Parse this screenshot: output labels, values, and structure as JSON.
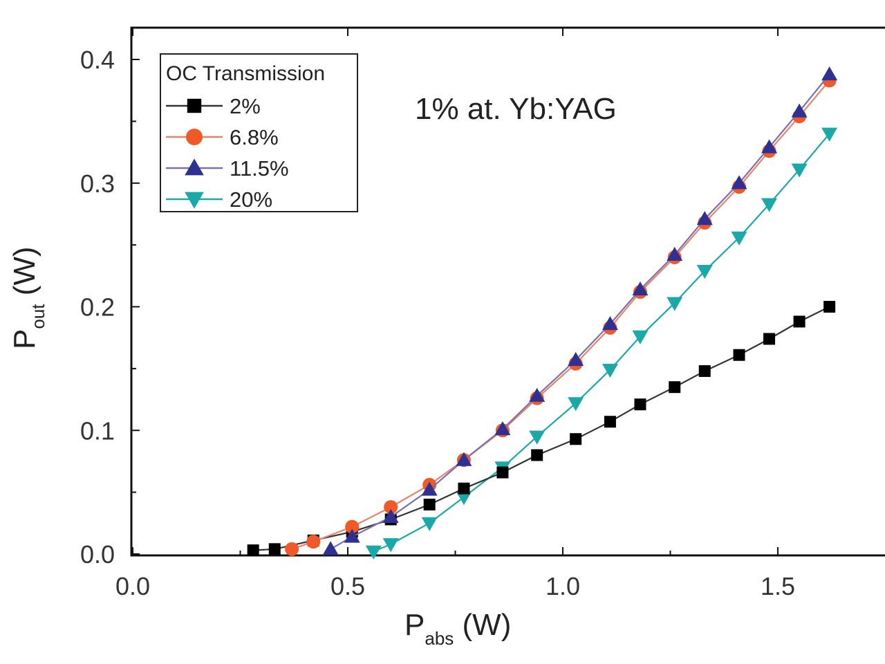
{
  "chart_data": {
    "type": "line",
    "title": "",
    "annotation": "1% at. Yb:YAG",
    "xlabel": {
      "main": "P",
      "sub": "abs",
      "unit": " (W)"
    },
    "ylabel": {
      "main": "P",
      "sub": "out",
      "unit": " (W)"
    },
    "xlim": [
      0.0,
      1.75
    ],
    "ylim": [
      0.0,
      0.42
    ],
    "xticks": [
      "0.0",
      "0.5",
      "1.0",
      "1.5"
    ],
    "xtick_values": [
      0.0,
      0.5,
      1.0,
      1.5
    ],
    "yticks": [
      "0.0",
      "0.1",
      "0.2",
      "0.3",
      "0.4"
    ],
    "ytick_values": [
      0.0,
      0.1,
      0.2,
      0.3,
      0.4
    ],
    "grid": false,
    "legend": {
      "title": "OC Transmission",
      "placement": "top-left"
    },
    "series": [
      {
        "name": "2%",
        "marker": "square",
        "color": "#000000",
        "line_color": "#333333",
        "x": [
          0.28,
          0.33,
          0.42,
          0.51,
          0.6,
          0.69,
          0.77,
          0.86,
          0.94,
          1.03,
          1.11,
          1.18,
          1.26,
          1.33,
          1.41,
          1.48,
          1.55,
          1.62
        ],
        "y": [
          0.003,
          0.004,
          0.011,
          0.018,
          0.028,
          0.04,
          0.053,
          0.066,
          0.08,
          0.093,
          0.107,
          0.121,
          0.135,
          0.148,
          0.161,
          0.174,
          0.188,
          0.2
        ]
      },
      {
        "name": "6.8%",
        "marker": "circle",
        "color": "#f05a28",
        "line_color": "#e8846a",
        "x": [
          0.37,
          0.42,
          0.51,
          0.6,
          0.69,
          0.77,
          0.86,
          0.94,
          1.03,
          1.11,
          1.18,
          1.26,
          1.33,
          1.41,
          1.48,
          1.55,
          1.62
        ],
        "y": [
          0.004,
          0.01,
          0.022,
          0.038,
          0.056,
          0.076,
          0.1,
          0.126,
          0.154,
          0.183,
          0.212,
          0.24,
          0.268,
          0.297,
          0.326,
          0.354,
          0.383
        ]
      },
      {
        "name": "11.5%",
        "marker": "triangle-up",
        "color": "#2e3192",
        "line_color": "#7a6fb0",
        "x": [
          0.46,
          0.51,
          0.6,
          0.69,
          0.77,
          0.86,
          0.94,
          1.03,
          1.11,
          1.18,
          1.26,
          1.33,
          1.41,
          1.48,
          1.55,
          1.62
        ],
        "y": [
          0.004,
          0.014,
          0.03,
          0.052,
          0.076,
          0.101,
          0.128,
          0.157,
          0.186,
          0.214,
          0.242,
          0.271,
          0.3,
          0.329,
          0.358,
          0.388
        ]
      },
      {
        "name": "20%",
        "marker": "triangle-down",
        "color": "#1aa8a8",
        "line_color": "#1aa8a8",
        "x": [
          0.56,
          0.6,
          0.69,
          0.77,
          0.86,
          0.94,
          1.03,
          1.11,
          1.18,
          1.26,
          1.33,
          1.41,
          1.48,
          1.55,
          1.62
        ],
        "y": [
          0.002,
          0.008,
          0.025,
          0.046,
          0.07,
          0.095,
          0.122,
          0.149,
          0.176,
          0.203,
          0.229,
          0.256,
          0.283,
          0.311,
          0.34
        ]
      }
    ]
  }
}
